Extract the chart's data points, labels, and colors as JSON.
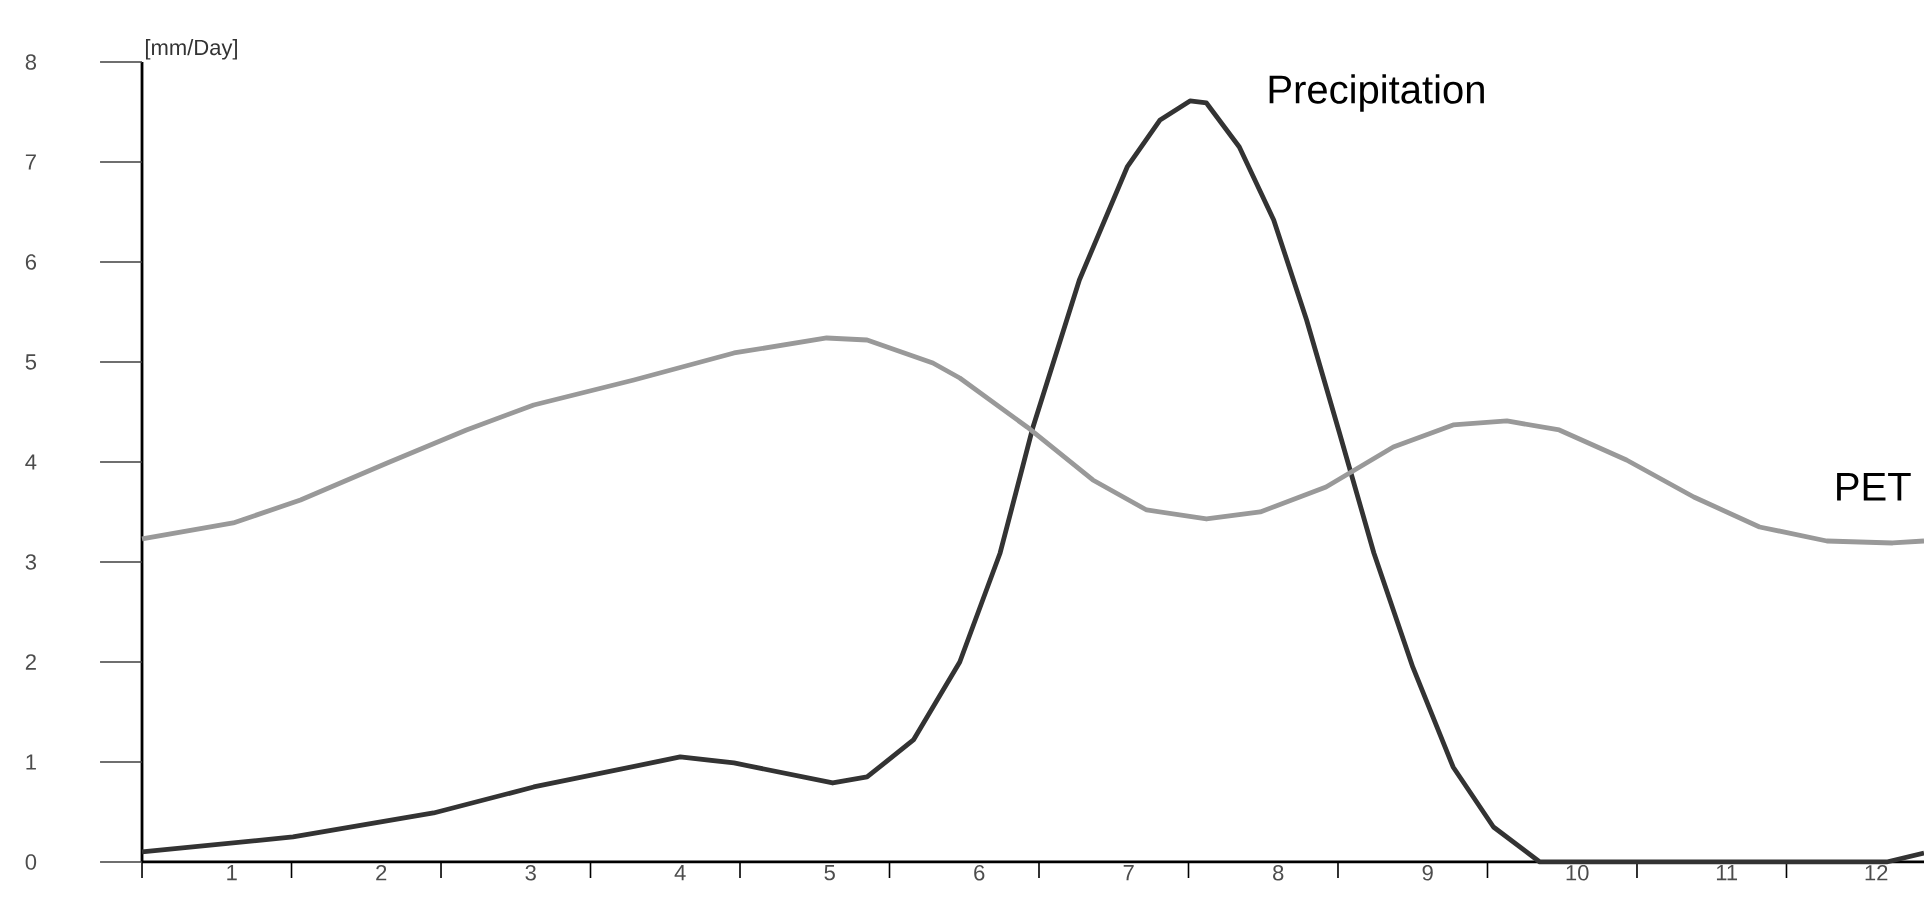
{
  "chart_data": {
    "type": "line",
    "ylabel": "[mm/Day]",
    "xlim": [
      0.4,
      12.32
    ],
    "ylim": [
      0,
      8
    ],
    "xticks": [
      {
        "value": 0.4,
        "label": null
      },
      {
        "value": 1,
        "label": "1"
      },
      {
        "value": 1.4,
        "label": null
      },
      {
        "value": 2,
        "label": "2"
      },
      {
        "value": 2.4,
        "label": null
      },
      {
        "value": 3,
        "label": "3"
      },
      {
        "value": 3.4,
        "label": null
      },
      {
        "value": 4,
        "label": "4"
      },
      {
        "value": 4.4,
        "label": null
      },
      {
        "value": 5,
        "label": "5"
      },
      {
        "value": 5.4,
        "label": null
      },
      {
        "value": 6,
        "label": "6"
      },
      {
        "value": 6.4,
        "label": null
      },
      {
        "value": 7,
        "label": "7"
      },
      {
        "value": 7.4,
        "label": null
      },
      {
        "value": 8,
        "label": "8"
      },
      {
        "value": 8.4,
        "label": null
      },
      {
        "value": 9,
        "label": "9"
      },
      {
        "value": 9.4,
        "label": null
      },
      {
        "value": 10,
        "label": "10"
      },
      {
        "value": 10.4,
        "label": null
      },
      {
        "value": 11,
        "label": "11"
      },
      {
        "value": 11.4,
        "label": null
      },
      {
        "value": 12,
        "label": "12"
      }
    ],
    "yticks": [
      0,
      1,
      2,
      3,
      4,
      5,
      6,
      7,
      8
    ],
    "series": [
      {
        "name": "Precipitation",
        "color": "#333333",
        "x": [
          0.4,
          1.41,
          2.35,
          3.02,
          4.0,
          4.36,
          5.02,
          5.25,
          5.56,
          5.87,
          6.14,
          6.36,
          6.67,
          6.99,
          7.21,
          7.41,
          7.52,
          7.74,
          7.97,
          8.19,
          8.41,
          8.64,
          8.9,
          9.17,
          9.44,
          9.75,
          12.07,
          12.32
        ],
        "values": [
          0.1,
          0.25,
          0.49,
          0.75,
          1.05,
          0.99,
          0.79,
          0.85,
          1.22,
          2.0,
          3.09,
          4.35,
          5.82,
          6.95,
          7.42,
          7.61,
          7.59,
          7.15,
          6.42,
          5.42,
          4.29,
          3.09,
          1.95,
          0.95,
          0.35,
          0.0,
          0.0,
          0.09
        ]
      },
      {
        "name": "PET",
        "color": "#999999",
        "x": [
          0.4,
          1.01,
          1.46,
          2.04,
          2.57,
          3.02,
          3.69,
          4.36,
          4.98,
          5.25,
          5.69,
          5.87,
          6.32,
          6.76,
          7.12,
          7.52,
          7.88,
          8.32,
          8.77,
          9.17,
          9.53,
          9.88,
          10.33,
          10.78,
          11.22,
          11.67,
          12.11,
          12.32
        ],
        "values": [
          3.23,
          3.39,
          3.62,
          3.99,
          4.32,
          4.57,
          4.82,
          5.09,
          5.24,
          5.22,
          4.99,
          4.84,
          4.35,
          3.82,
          3.52,
          3.43,
          3.5,
          3.75,
          4.15,
          4.37,
          4.41,
          4.32,
          4.02,
          3.65,
          3.35,
          3.21,
          3.19,
          3.21
        ]
      }
    ]
  }
}
